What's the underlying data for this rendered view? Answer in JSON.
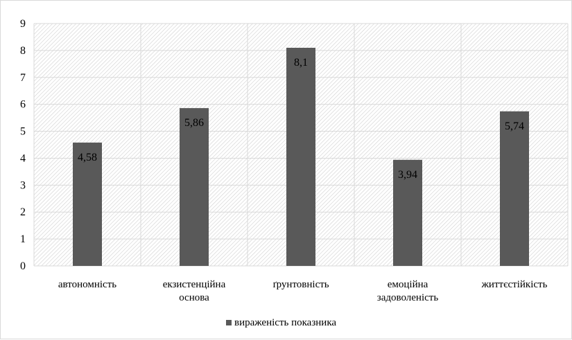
{
  "chart_data": {
    "type": "bar",
    "title": "",
    "xlabel": "",
    "ylabel": "",
    "categories": [
      [
        "автономність"
      ],
      [
        "екзистенційна",
        "основа"
      ],
      [
        "ґрунтовність"
      ],
      [
        "емоційна",
        "задоволеність"
      ],
      [
        "життєстійкість"
      ]
    ],
    "series": [
      {
        "name": "вираженість показника",
        "values": [
          4.58,
          5.86,
          8.1,
          3.94,
          5.74
        ],
        "labels": [
          "4,58",
          "5,86",
          "8,1",
          "3,94",
          "5,74"
        ],
        "color": "#595959"
      }
    ],
    "ylim": [
      0,
      9
    ],
    "yticks": [
      "0",
      "1",
      "2",
      "3",
      "4",
      "5",
      "6",
      "7",
      "8",
      "9"
    ],
    "grid": true,
    "plot_pattern": "diagonal-hatch",
    "legend_position": "bottom"
  }
}
